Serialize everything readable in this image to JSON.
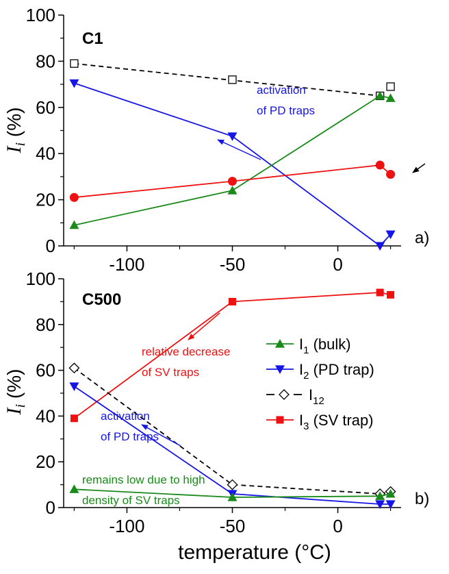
{
  "xlabel": "temperature (°C)",
  "colors": {
    "I1": "#1a8a1a",
    "I2": "#1515e6",
    "I12": "#000000",
    "I3": "#ee1111"
  },
  "legend": [
    {
      "key": "I1",
      "base": "I",
      "sub": "1",
      "suffix": " (bulk)",
      "marker": "triangle-up",
      "dashed": false
    },
    {
      "key": "I2",
      "base": "I",
      "sub": "2",
      "suffix": " (PD trap)",
      "marker": "triangle-down",
      "dashed": false
    },
    {
      "key": "I12",
      "base": "I",
      "sub": "12",
      "suffix": "",
      "marker": "diamond-open",
      "dashed": true
    },
    {
      "key": "I3",
      "base": "I",
      "sub": "3",
      "suffix": " (SV trap)",
      "marker": "square",
      "dashed": false
    }
  ],
  "chart_data": [
    {
      "type": "line",
      "panel_title": "C1",
      "panel_tag": "a)",
      "ylabel_main": "I",
      "ylabel_sub": "i",
      "ylabel_unit": " (%)",
      "xlim": [
        -130,
        30
      ],
      "ylim": [
        0,
        100
      ],
      "xticks": [
        -100,
        -50,
        0
      ],
      "yticks": [
        0,
        20,
        40,
        60,
        80,
        100
      ],
      "series": [
        {
          "key": "I12",
          "marker": "square-open",
          "dashed": true,
          "x": [
            -125,
            -50,
            20,
            25
          ],
          "y": [
            79,
            72,
            65,
            69
          ],
          "line": [
            [
              -125,
              79
            ],
            [
              20,
              65
            ]
          ]
        },
        {
          "key": "I2",
          "marker": "triangle-down",
          "dashed": false,
          "x": [
            -125,
            -50,
            20,
            25
          ],
          "y": [
            70.5,
            47.5,
            0,
            5
          ]
        },
        {
          "key": "I1",
          "marker": "triangle-up",
          "dashed": false,
          "x": [
            -125,
            -50,
            20,
            25
          ],
          "y": [
            9,
            24,
            65,
            64
          ]
        },
        {
          "key": "I3",
          "marker": "circle",
          "dashed": false,
          "x": [
            -125,
            -50,
            20,
            25
          ],
          "y": [
            21,
            28,
            35,
            31
          ]
        }
      ],
      "annotations": [
        {
          "lines": [
            "activation",
            "of PD traps"
          ],
          "color": "I2"
        }
      ]
    },
    {
      "type": "line",
      "panel_title": "C500",
      "panel_tag": "b)",
      "ylabel_main": "I",
      "ylabel_sub": "i",
      "ylabel_unit": " (%)",
      "xlim": [
        -130,
        30
      ],
      "ylim": [
        0,
        100
      ],
      "xticks": [
        -100,
        -50,
        0
      ],
      "yticks": [
        0,
        20,
        40,
        60,
        80,
        100
      ],
      "series": [
        {
          "key": "I3",
          "marker": "square",
          "dashed": false,
          "x": [
            -125,
            -50,
            20,
            25
          ],
          "y": [
            39,
            90,
            94,
            93
          ]
        },
        {
          "key": "I12",
          "marker": "diamond-open",
          "dashed": true,
          "x": [
            -125,
            -50,
            20,
            25
          ],
          "y": [
            61,
            10,
            6,
            7
          ]
        },
        {
          "key": "I2",
          "marker": "triangle-down",
          "dashed": false,
          "x": [
            -125,
            -50,
            20,
            25
          ],
          "y": [
            53,
            6,
            1.5,
            1.5
          ]
        },
        {
          "key": "I1",
          "marker": "triangle-up",
          "dashed": false,
          "x": [
            -125,
            -50,
            20,
            25
          ],
          "y": [
            8,
            4.5,
            5,
            6
          ]
        }
      ],
      "annotations": [
        {
          "lines": [
            "relative decrease",
            "of SV traps"
          ],
          "color": "I3"
        },
        {
          "lines": [
            "activation",
            "of PD traps"
          ],
          "color": "I2"
        },
        {
          "lines": [
            "remains low due to high",
            "density of SV traps"
          ],
          "color": "I1"
        }
      ]
    }
  ]
}
